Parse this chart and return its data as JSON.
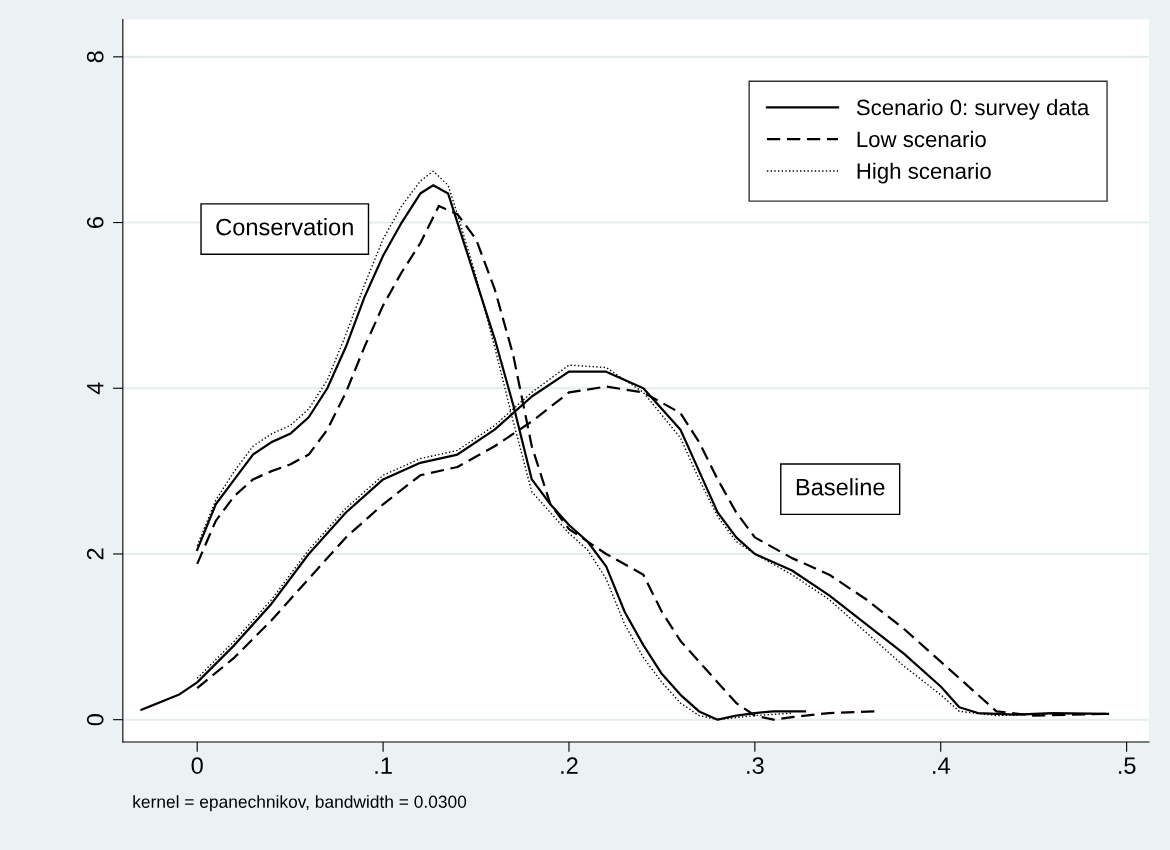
{
  "chart_data": {
    "type": "line",
    "xlim": [
      -0.04,
      0.512
    ],
    "ylim": [
      -0.27,
      8.45
    ],
    "xticks": [
      0,
      {
        "value": 0.1,
        "label": ".1"
      },
      {
        "value": 0.2,
        "label": ".2"
      },
      {
        "value": 0.3,
        "label": ".3"
      },
      {
        "value": 0.4,
        "label": ".4"
      },
      {
        "value": 0.5,
        "label": ".5"
      }
    ],
    "yticks": [
      0,
      2,
      4,
      6,
      8
    ],
    "grid": "y",
    "legend": "top right",
    "annotations": [
      "Conservation",
      "Baseline",
      "kernel = epanechnikov, bandwidth = 0.0300"
    ],
    "series": [
      {
        "name": "Scenario 0: survey data",
        "color": "#000000",
        "line_style": "solid",
        "x": [
          -0.03,
          -0.01,
          0,
          0.02,
          0.04,
          0.06,
          0.08,
          0.1,
          0.12,
          0.14,
          0.16,
          0.18,
          0.2,
          0.22,
          0.24,
          0.26,
          0.27,
          0.28,
          0.29,
          0.3,
          0.32,
          0.34,
          0.36,
          0.38,
          0.4,
          0.41,
          0.42,
          0.44,
          0.46,
          0.49
        ],
        "values": [
          0.12,
          0.3,
          0.45,
          0.9,
          1.4,
          2.0,
          2.5,
          2.9,
          3.1,
          3.2,
          3.5,
          3.9,
          4.2,
          4.2,
          4.0,
          3.5,
          3.0,
          2.5,
          2.2,
          2.0,
          1.8,
          1.5,
          1.15,
          0.8,
          0.4,
          0.15,
          0.08,
          0.06,
          0.08,
          0.07
        ]
      },
      {
        "name": "Low scenario",
        "color": "#000000",
        "line_style": "dashed",
        "x": [
          0,
          0.02,
          0.04,
          0.06,
          0.08,
          0.1,
          0.12,
          0.14,
          0.16,
          0.18,
          0.2,
          0.22,
          0.24,
          0.26,
          0.27,
          0.28,
          0.29,
          0.3,
          0.32,
          0.34,
          0.36,
          0.38,
          0.4,
          0.42,
          0.43,
          0.45,
          0.47,
          0.49
        ],
        "values": [
          0.38,
          0.75,
          1.2,
          1.7,
          2.2,
          2.6,
          2.95,
          3.05,
          3.3,
          3.6,
          3.95,
          4.02,
          3.95,
          3.7,
          3.35,
          2.9,
          2.5,
          2.2,
          1.95,
          1.75,
          1.45,
          1.1,
          0.7,
          0.3,
          0.1,
          0.05,
          0.06,
          0.07
        ]
      },
      {
        "name": "High scenario",
        "color": "#000000",
        "line_style": "dotted",
        "x": [
          0,
          0.02,
          0.04,
          0.06,
          0.08,
          0.1,
          0.12,
          0.14,
          0.16,
          0.18,
          0.2,
          0.22,
          0.24,
          0.26,
          0.27,
          0.28,
          0.29,
          0.3,
          0.32,
          0.34,
          0.36,
          0.38,
          0.4,
          0.41,
          0.43,
          0.46,
          0.49
        ],
        "values": [
          0.5,
          0.95,
          1.45,
          2.05,
          2.55,
          2.95,
          3.15,
          3.25,
          3.55,
          3.95,
          4.28,
          4.25,
          3.95,
          3.4,
          2.9,
          2.45,
          2.15,
          2.0,
          1.75,
          1.45,
          1.05,
          0.65,
          0.3,
          0.1,
          0.05,
          0.07,
          0.07
        ]
      },
      {
        "color": "#000000",
        "line_style": "solid",
        "x": [
          0,
          0.01,
          0.02,
          0.03,
          0.04,
          0.05,
          0.06,
          0.07,
          0.08,
          0.09,
          0.1,
          0.11,
          0.12,
          0.127,
          0.135,
          0.14,
          0.15,
          0.16,
          0.17,
          0.18,
          0.19,
          0.2,
          0.21,
          0.22,
          0.23,
          0.24,
          0.25,
          0.26,
          0.27,
          0.28,
          0.29,
          0.3,
          0.31,
          0.327
        ],
        "values": [
          2.05,
          2.6,
          2.9,
          3.2,
          3.35,
          3.45,
          3.65,
          4.0,
          4.5,
          5.1,
          5.6,
          6.0,
          6.35,
          6.45,
          6.35,
          6.0,
          5.3,
          4.6,
          3.8,
          2.9,
          2.6,
          2.35,
          2.15,
          1.85,
          1.3,
          0.9,
          0.55,
          0.3,
          0.1,
          0.0,
          0.05,
          0.08,
          0.1,
          0.1
        ]
      },
      {
        "color": "#000000",
        "line_style": "dashed",
        "x": [
          0,
          0.01,
          0.02,
          0.03,
          0.04,
          0.05,
          0.06,
          0.07,
          0.08,
          0.09,
          0.1,
          0.11,
          0.12,
          0.13,
          0.14,
          0.15,
          0.16,
          0.17,
          0.18,
          0.19,
          0.2,
          0.22,
          0.24,
          0.25,
          0.26,
          0.27,
          0.28,
          0.29,
          0.3,
          0.31,
          0.32,
          0.34,
          0.365
        ],
        "values": [
          1.88,
          2.4,
          2.7,
          2.9,
          3.0,
          3.08,
          3.2,
          3.5,
          3.95,
          4.5,
          5.0,
          5.4,
          5.75,
          6.2,
          6.1,
          5.8,
          5.2,
          4.4,
          3.3,
          2.6,
          2.3,
          2.0,
          1.75,
          1.3,
          0.95,
          0.7,
          0.45,
          0.2,
          0.05,
          0.0,
          0.03,
          0.08,
          0.1
        ]
      },
      {
        "color": "#000000",
        "line_style": "dotted",
        "x": [
          0,
          0.01,
          0.02,
          0.03,
          0.04,
          0.05,
          0.06,
          0.07,
          0.08,
          0.09,
          0.1,
          0.11,
          0.12,
          0.127,
          0.135,
          0.14,
          0.15,
          0.16,
          0.17,
          0.18,
          0.19,
          0.2,
          0.21,
          0.22,
          0.23,
          0.24,
          0.25,
          0.26,
          0.27,
          0.28,
          0.3,
          0.32
        ],
        "values": [
          2.1,
          2.65,
          3.0,
          3.3,
          3.45,
          3.55,
          3.75,
          4.1,
          4.65,
          5.25,
          5.8,
          6.2,
          6.5,
          6.62,
          6.45,
          6.1,
          5.35,
          4.5,
          3.6,
          2.75,
          2.5,
          2.25,
          2.05,
          1.7,
          1.15,
          0.75,
          0.45,
          0.2,
          0.05,
          0.0,
          0.05,
          0.08
        ]
      }
    ]
  }
}
